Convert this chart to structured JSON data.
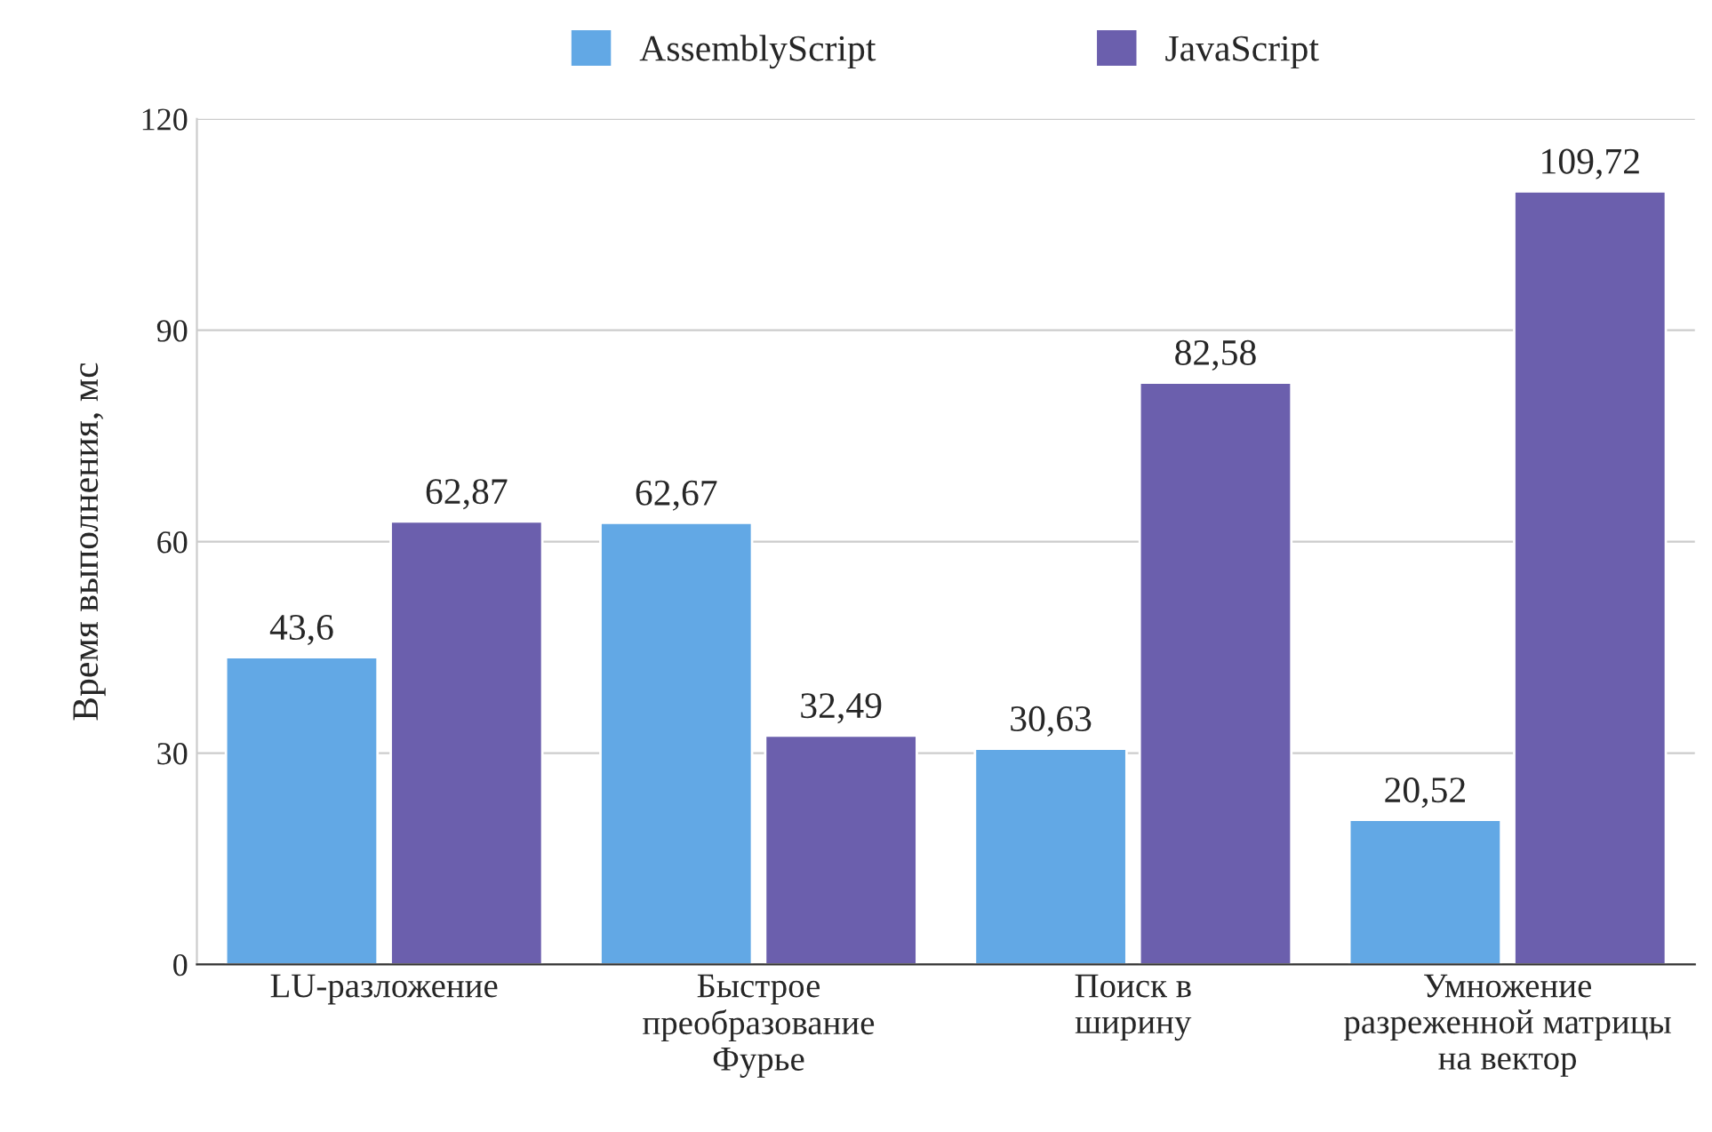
{
  "chart_data": {
    "type": "bar",
    "ylabel": "Время выполнения, мс",
    "categories": [
      "LU-разложение",
      "Быстрое\nпреобразование\nФурье",
      "Поиск в\nширину",
      "Умножение\nразреженной матрицы\nна вектор"
    ],
    "series": [
      {
        "name": "AssemblyScript",
        "color": "#62a8e5",
        "values": [
          43.6,
          62.67,
          30.63,
          20.52
        ],
        "value_labels": [
          "43,6",
          "62,67",
          "30,63",
          "20,52"
        ]
      },
      {
        "name": "JavaScript",
        "color": "#6b5fad",
        "values": [
          62.87,
          32.49,
          82.58,
          109.72
        ],
        "value_labels": [
          "62,87",
          "32,49",
          "82,58",
          "109,72"
        ]
      }
    ],
    "ylim": [
      0,
      120
    ],
    "yticks": [
      0,
      30,
      60,
      90,
      120
    ],
    "grid": "y",
    "legend": "top"
  }
}
